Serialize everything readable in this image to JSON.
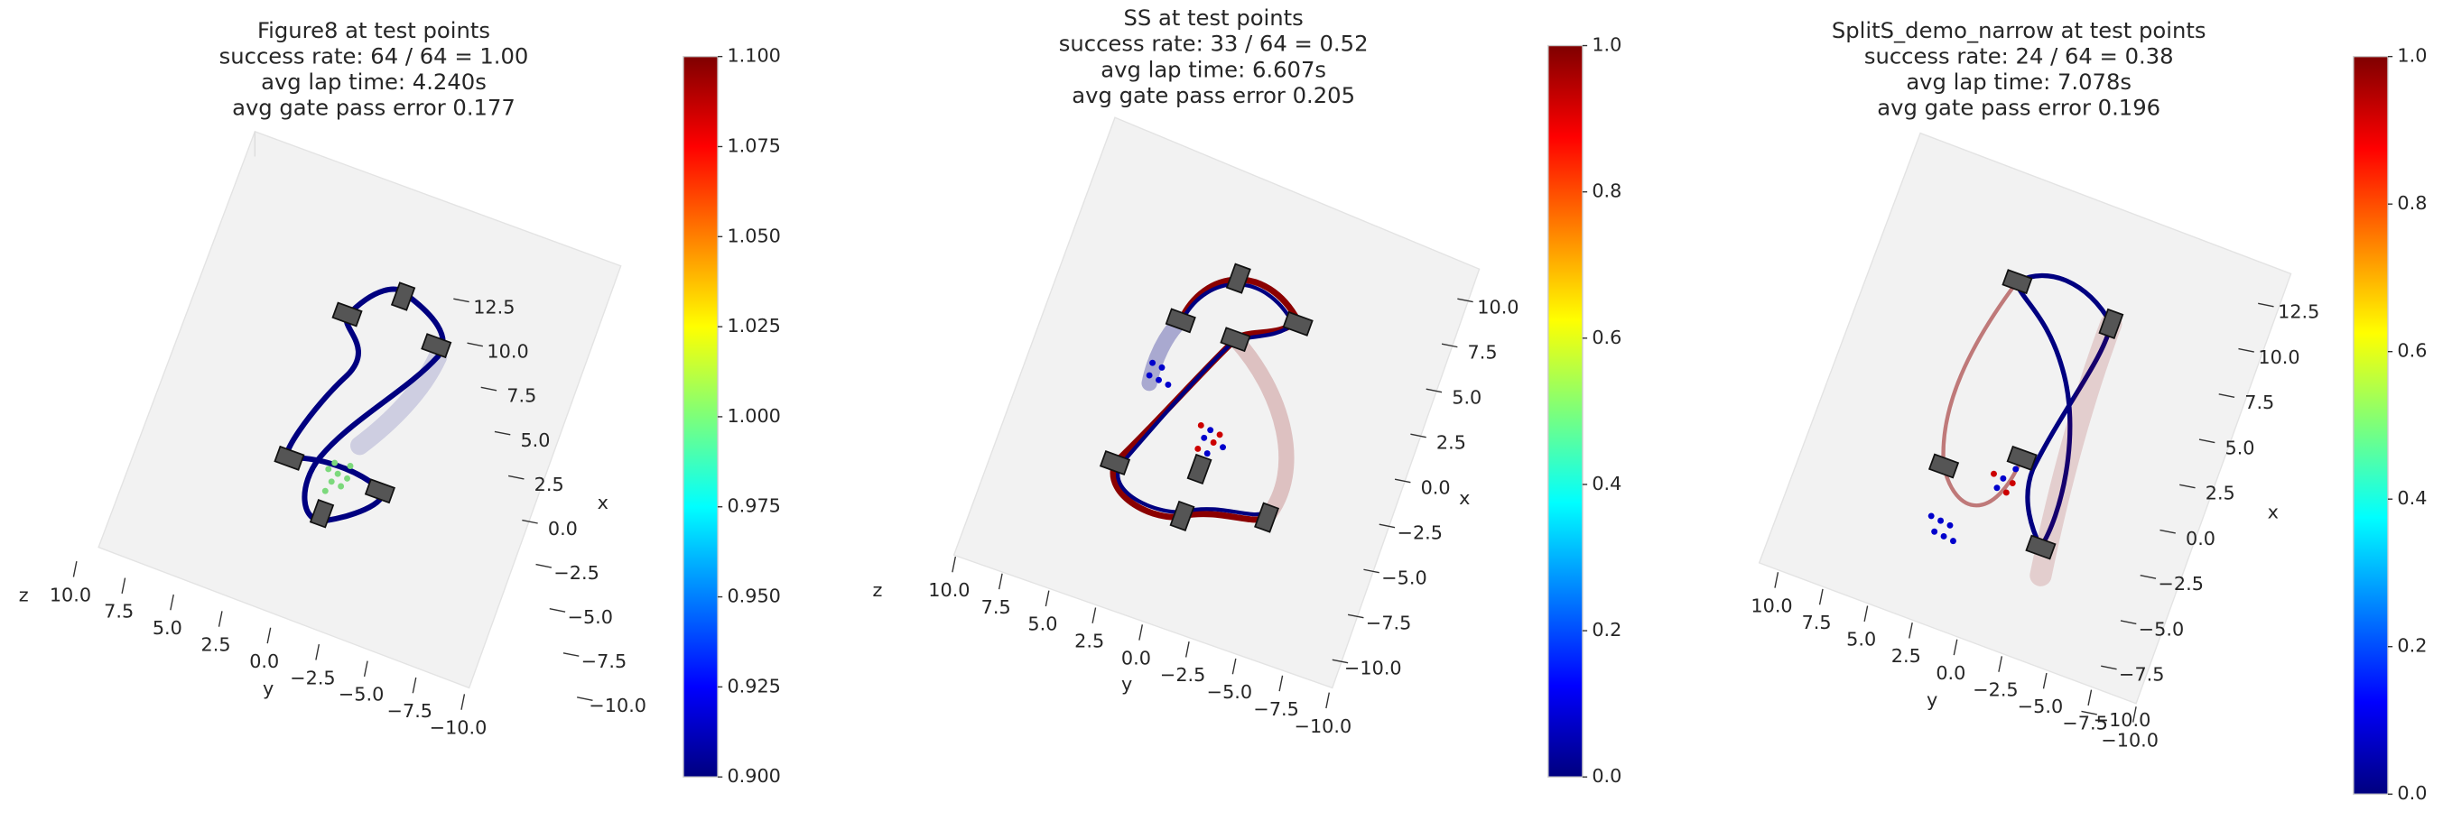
{
  "chart_data": [
    {
      "type": "3d-line",
      "title": [
        "Figure8 at test points",
        "success rate: 64 / 64 = 1.00",
        "avg lap time: 4.240s",
        "avg gate pass error 0.177"
      ],
      "xlabel": "x",
      "ylabel": "y",
      "zlabel": "z",
      "xlim": [
        -10,
        12.5
      ],
      "xticks": [
        {
          "value": -10,
          "label": "−10.0"
        },
        {
          "value": -7.5,
          "label": "−7.5"
        },
        {
          "value": -5,
          "label": "−5.0"
        },
        {
          "value": -2.5,
          "label": "−2.5"
        },
        {
          "value": 0,
          "label": "0.0"
        },
        2.5,
        {
          "value": 5,
          "label": "5.0"
        },
        7.5,
        {
          "value": 10,
          "label": "10.0"
        },
        12.5
      ],
      "ylim": [
        -10,
        10
      ],
      "yticks": [
        {
          "value": -10,
          "label": "−10.0"
        },
        {
          "value": -7.5,
          "label": "−7.5"
        },
        {
          "value": -5,
          "label": "−5.0"
        },
        {
          "value": -2.5,
          "label": "−2.5"
        },
        {
          "value": 0,
          "label": "0.0"
        },
        2.5,
        {
          "value": 5,
          "label": "5.0"
        },
        7.5,
        {
          "value": 10,
          "label": "10.0"
        }
      ],
      "colormap": "jet",
      "clim": [
        0.9,
        1.1
      ],
      "cticks": [
        {
          "value": 0.9,
          "label": "0.900"
        },
        0.925,
        {
          "value": 0.95,
          "label": "0.950"
        },
        0.975,
        {
          "value": 1,
          "label": "1.000"
        },
        1.025,
        {
          "value": 1.05,
          "label": "1.050"
        },
        1.075,
        {
          "value": 1.1,
          "label": "1.100"
        }
      ]
    },
    {
      "type": "3d-line",
      "title": [
        "SS at test points",
        "success rate: 33 / 64 = 0.52",
        "avg lap time: 6.607s",
        "avg gate pass error 0.205"
      ],
      "xlabel": "x",
      "ylabel": "y",
      "zlabel": "z",
      "xlim": [
        -10,
        10
      ],
      "xticks": [
        {
          "value": -10,
          "label": "−10.0"
        },
        {
          "value": -7.5,
          "label": "−7.5"
        },
        {
          "value": -5,
          "label": "−5.0"
        },
        {
          "value": -2.5,
          "label": "−2.5"
        },
        {
          "value": 0,
          "label": "0.0"
        },
        2.5,
        {
          "value": 5,
          "label": "5.0"
        },
        7.5,
        {
          "value": 10,
          "label": "10.0"
        }
      ],
      "ylim": [
        -10,
        10
      ],
      "yticks": [
        {
          "value": -10,
          "label": "−10.0"
        },
        {
          "value": -7.5,
          "label": "−7.5"
        },
        {
          "value": -5,
          "label": "−5.0"
        },
        {
          "value": -2.5,
          "label": "−2.5"
        },
        {
          "value": 0,
          "label": "0.0"
        },
        2.5,
        {
          "value": 5,
          "label": "5.0"
        },
        7.5,
        {
          "value": 10,
          "label": "10.0"
        }
      ],
      "colormap": "jet",
      "clim": [
        0,
        1
      ],
      "cticks": [
        {
          "value": 0,
          "label": "0.0"
        },
        0.2,
        0.4,
        0.6,
        0.8,
        {
          "value": 1,
          "label": "1.0"
        }
      ]
    },
    {
      "type": "3d-line",
      "title": [
        "SplitS_demo_narrow at test points",
        "success rate: 24 / 64 = 0.38",
        "avg lap time: 7.078s",
        "avg gate pass error 0.196"
      ],
      "xlabel": "x",
      "ylabel": "y",
      "xlim": [
        -10,
        12.5
      ],
      "xticks": [
        {
          "value": -10,
          "label": "−10.0"
        },
        {
          "value": -7.5,
          "label": "−7.5"
        },
        {
          "value": -5,
          "label": "−5.0"
        },
        {
          "value": -2.5,
          "label": "−2.5"
        },
        {
          "value": 0,
          "label": "0.0"
        },
        2.5,
        {
          "value": 5,
          "label": "5.0"
        },
        7.5,
        {
          "value": 10,
          "label": "10.0"
        },
        12.5
      ],
      "ylim": [
        -10,
        10
      ],
      "yticks": [
        {
          "value": -10,
          "label": "−10.0"
        },
        {
          "value": -7.5,
          "label": "−7.5"
        },
        {
          "value": -5,
          "label": "−5.0"
        },
        {
          "value": -2.5,
          "label": "−2.5"
        },
        {
          "value": 0,
          "label": "0.0"
        },
        2.5,
        {
          "value": 5,
          "label": "5.0"
        },
        7.5,
        {
          "value": 10,
          "label": "10.0"
        }
      ],
      "colormap": "jet",
      "clim": [
        0,
        1
      ],
      "cticks": [
        {
          "value": 0,
          "label": "0.0"
        },
        0.2,
        0.4,
        0.6,
        0.8,
        {
          "value": 1,
          "label": "1.0"
        }
      ]
    }
  ]
}
